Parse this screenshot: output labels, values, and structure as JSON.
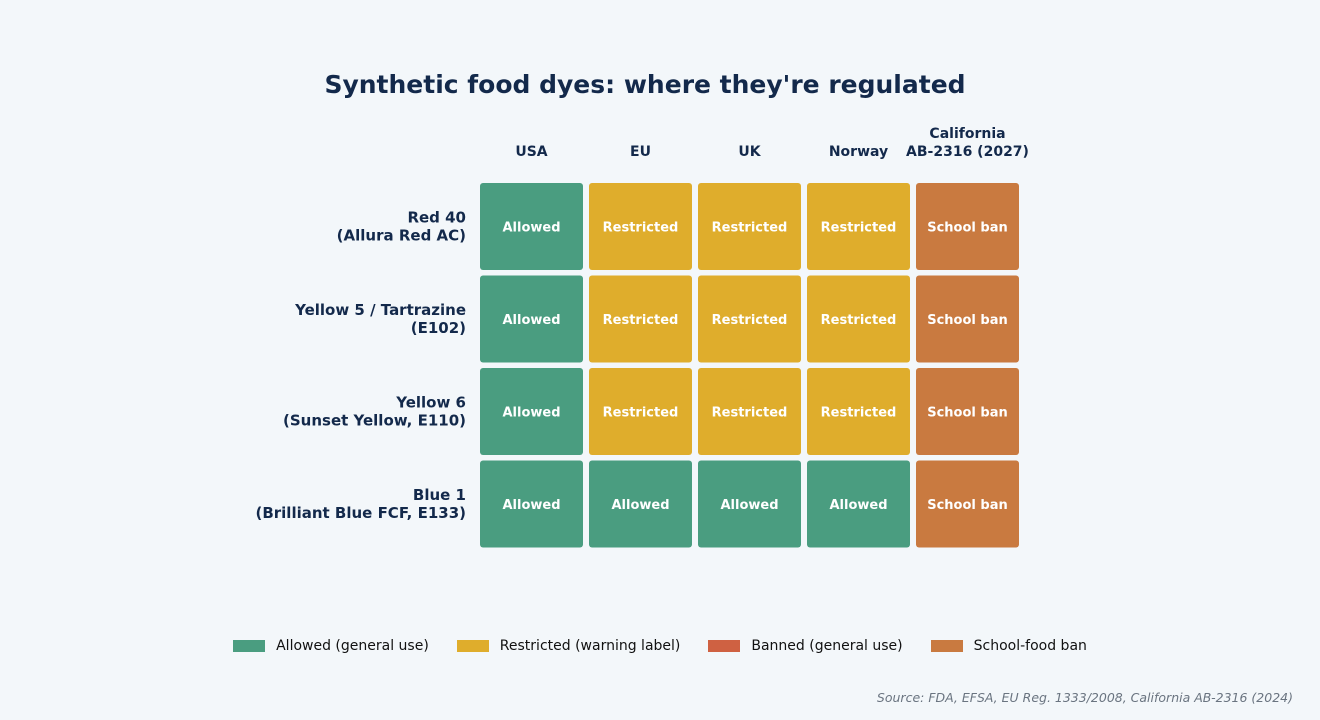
{
  "chart_data": {
    "type": "heatmap",
    "title": "Synthetic food dyes: where they're regulated",
    "columns": [
      {
        "lines": [
          "USA"
        ]
      },
      {
        "lines": [
          "EU"
        ]
      },
      {
        "lines": [
          "UK"
        ]
      },
      {
        "lines": [
          "Norway"
        ]
      },
      {
        "lines": [
          "California",
          "AB-2316 (2027)"
        ]
      }
    ],
    "rows": [
      {
        "lines": [
          "Red 40",
          "(Allura Red AC)"
        ],
        "cells": [
          "Allowed",
          "Restricted",
          "Restricted",
          "Restricted",
          "School ban"
        ]
      },
      {
        "lines": [
          "Yellow 5 / Tartrazine",
          "(E102)"
        ],
        "cells": [
          "Allowed",
          "Restricted",
          "Restricted",
          "Restricted",
          "School ban"
        ]
      },
      {
        "lines": [
          "Yellow 6",
          "(Sunset Yellow, E110)"
        ],
        "cells": [
          "Allowed",
          "Restricted",
          "Restricted",
          "Restricted",
          "School ban"
        ]
      },
      {
        "lines": [
          "Blue 1",
          "(Brilliant Blue FCF, E133)"
        ],
        "cells": [
          "Allowed",
          "Allowed",
          "Allowed",
          "Allowed",
          "School ban"
        ]
      }
    ],
    "status_colors": {
      "Allowed": "#4a9d80",
      "Restricted": "#dfad2c",
      "Banned": "#cf6142",
      "School ban": "#c97a40"
    },
    "legend": [
      {
        "label": "Allowed (general use)",
        "color": "#4a9d80"
      },
      {
        "label": "Restricted (warning label)",
        "color": "#dfad2c"
      },
      {
        "label": "Banned (general use)",
        "color": "#cf6142"
      },
      {
        "label": "School-food ban",
        "color": "#c97a40"
      }
    ],
    "legend_position": "bottom"
  },
  "source": "Source: FDA, EFSA, EU Reg. 1333/2008, California AB-2316 (2024)"
}
